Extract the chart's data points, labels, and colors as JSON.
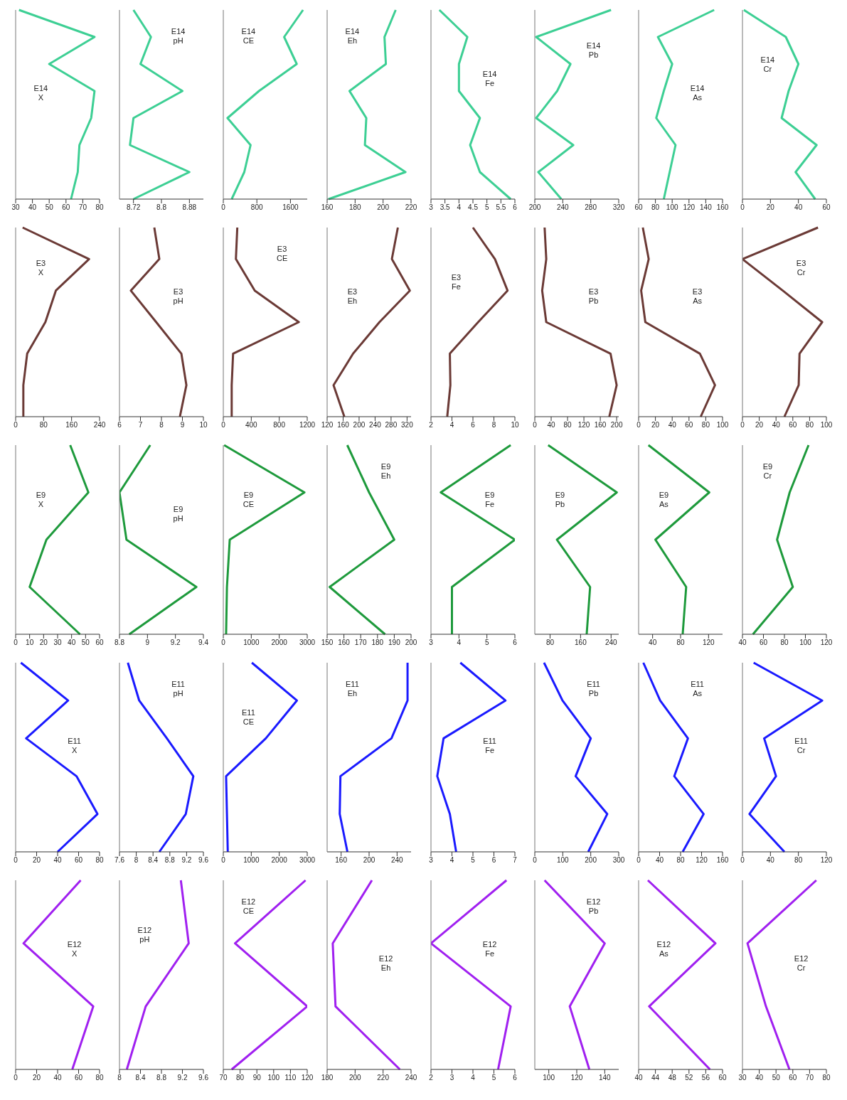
{
  "chart_data": [
    {
      "type": "line",
      "orientation": "horizontal",
      "categories": [
        null,
        null,
        null,
        null,
        null,
        null,
        null,
        null
      ],
      "series": [
        {
          "name": "E14 X",
          "color": "#3dcf94",
          "values": [
            32,
            77,
            50,
            77,
            75,
            68,
            67,
            63
          ]
        }
      ],
      "xlim": [
        30,
        80
      ],
      "xticks": [
        30,
        40,
        50,
        60,
        70,
        80
      ],
      "tick_labels": "x"
    },
    {
      "type": "line",
      "orientation": "horizontal",
      "categories": [
        null,
        null,
        null,
        null,
        null,
        null,
        null,
        null
      ],
      "series": [
        {
          "name": "E14 pH",
          "color": "#3dcf94",
          "values": [
            8.72,
            8.77,
            8.74,
            8.86,
            8.72,
            8.71,
            8.88,
            8.72
          ]
        }
      ],
      "xlim": [
        8.68,
        8.92
      ],
      "xticks": [
        8.72,
        8.8,
        8.88
      ],
      "tick_labels": "x"
    },
    {
      "type": "line",
      "orientation": "horizontal",
      "categories": [
        null,
        null,
        null,
        null,
        null,
        null,
        null,
        null
      ],
      "series": [
        {
          "name": "E14 CE",
          "color": "#3dcf94",
          "values": [
            1900,
            1450,
            1750,
            850,
            100,
            650,
            500,
            200
          ]
        }
      ],
      "xlim": [
        0,
        2000
      ],
      "xticks": [
        0,
        800,
        1600
      ],
      "tick_labels": "x"
    },
    {
      "type": "line",
      "orientation": "horizontal",
      "categories": [
        null,
        null,
        null,
        null,
        null,
        null,
        null,
        null
      ],
      "series": [
        {
          "name": "E14 Eh",
          "color": "#3dcf94",
          "values": [
            209,
            201,
            202,
            176,
            188,
            187,
            216,
            161
          ]
        }
      ],
      "xlim": [
        160,
        220
      ],
      "xticks": [
        160,
        180,
        200,
        220
      ],
      "tick_labels": "x"
    },
    {
      "type": "line",
      "orientation": "horizontal",
      "categories": [
        null,
        null,
        null,
        null,
        null,
        null,
        null,
        null
      ],
      "series": [
        {
          "name": "E14 Fe",
          "color": "#3dcf94",
          "values": [
            3.3,
            4.3,
            4.0,
            4.0,
            4.75,
            4.4,
            4.75,
            5.85
          ]
        }
      ],
      "xlim": [
        3,
        6
      ],
      "xticks": [
        3,
        3.5,
        4,
        4.5,
        5,
        5.5,
        6
      ],
      "tick_labels": "x"
    },
    {
      "type": "line",
      "orientation": "horizontal",
      "categories": [
        null,
        null,
        null,
        null,
        null,
        null,
        null,
        null
      ],
      "series": [
        {
          "name": "E14 Pb",
          "color": "#3dcf94",
          "values": [
            309,
            202,
            251,
            232,
            202,
            255,
            205,
            238
          ]
        }
      ],
      "xlim": [
        200,
        320
      ],
      "xticks": [
        200,
        240,
        280,
        320
      ],
      "tick_labels": "x"
    },
    {
      "type": "line",
      "orientation": "horizontal",
      "categories": [
        null,
        null,
        null,
        null,
        null,
        null,
        null,
        null
      ],
      "series": [
        {
          "name": "E14 As",
          "color": "#3dcf94",
          "values": [
            150,
            83,
            100,
            90,
            81,
            104,
            97,
            90
          ]
        }
      ],
      "xlim": [
        60,
        160
      ],
      "xticks": [
        60,
        80,
        100,
        120,
        140,
        160
      ],
      "tick_labels": "x"
    },
    {
      "type": "line",
      "orientation": "horizontal",
      "categories": [
        null,
        null,
        null,
        null,
        null,
        null,
        null,
        null
      ],
      "series": [
        {
          "name": "E14 Cr",
          "color": "#3dcf94",
          "values": [
            1,
            31,
            40,
            33,
            28,
            53,
            38,
            52
          ]
        }
      ],
      "xlim": [
        0,
        60
      ],
      "xticks": [
        0,
        20,
        40,
        60
      ],
      "tick_labels": "x"
    },
    {
      "type": "line",
      "orientation": "horizontal",
      "categories": [
        null,
        null,
        null,
        null,
        null,
        null,
        null
      ],
      "series": [
        {
          "name": "E3 X",
          "color": "#6b3a36",
          "values": [
            20,
            210,
            115,
            85,
            33,
            22,
            22
          ]
        }
      ],
      "xlim": [
        0,
        240
      ],
      "xticks": [
        0,
        80,
        160,
        240
      ],
      "tick_labels": "x"
    },
    {
      "type": "line",
      "orientation": "horizontal",
      "categories": [
        null,
        null,
        null,
        null,
        null,
        null,
        null
      ],
      "series": [
        {
          "name": "E3 pH",
          "color": "#6b3a36",
          "values": [
            7.66,
            7.9,
            6.54,
            7.75,
            8.95,
            9.19,
            8.88
          ]
        }
      ],
      "xlim": [
        6,
        10
      ],
      "xticks": [
        6,
        7,
        8,
        9,
        10
      ],
      "tick_labels": "x"
    },
    {
      "type": "line",
      "orientation": "horizontal",
      "categories": [
        null,
        null,
        null,
        null,
        null,
        null,
        null
      ],
      "series": [
        {
          "name": "E3 CE",
          "color": "#6b3a36",
          "values": [
            200,
            180,
            450,
            1080,
            140,
            120,
            120
          ]
        }
      ],
      "xlim": [
        0,
        1200
      ],
      "xticks": [
        0,
        400,
        800,
        1200
      ],
      "tick_labels": "x"
    },
    {
      "type": "line",
      "orientation": "horizontal",
      "categories": [
        null,
        null,
        null,
        null,
        null,
        null,
        null
      ],
      "series": [
        {
          "name": "E3 Eh",
          "color": "#6b3a36",
          "values": [
            297,
            282,
            327,
            251,
            185,
            136,
            163
          ]
        }
      ],
      "xlim": [
        120,
        330
      ],
      "xticks": [
        120,
        160,
        200,
        240,
        280,
        320
      ],
      "tick_labels": "x"
    },
    {
      "type": "line",
      "orientation": "horizontal",
      "categories": [
        null,
        null,
        null,
        null,
        null,
        null,
        null
      ],
      "series": [
        {
          "name": "E3 Fe",
          "color": "#6b3a36",
          "values": [
            6.0,
            8.1,
            9.3,
            6.5,
            3.8,
            3.85,
            3.55
          ]
        }
      ],
      "xlim": [
        2,
        10
      ],
      "xticks": [
        2,
        4,
        6,
        8,
        10
      ],
      "tick_labels": "x"
    },
    {
      "type": "line",
      "orientation": "horizontal",
      "categories": [
        null,
        null,
        null,
        null,
        null,
        null,
        null
      ],
      "series": [
        {
          "name": "E3 Pb",
          "color": "#6b3a36",
          "values": [
            24,
            28,
            18,
            28,
            185,
            200,
            182
          ]
        }
      ],
      "xlim": [
        0,
        205
      ],
      "xticks": [
        0,
        40,
        80,
        120,
        160,
        200
      ],
      "tick_labels": "x"
    },
    {
      "type": "line",
      "orientation": "horizontal",
      "categories": [
        null,
        null,
        null,
        null,
        null,
        null,
        null
      ],
      "series": [
        {
          "name": "E3 As",
          "color": "#6b3a36",
          "values": [
            5,
            12,
            3,
            8,
            73,
            91,
            74
          ]
        }
      ],
      "xlim": [
        0,
        100
      ],
      "xticks": [
        0,
        20,
        40,
        60,
        80,
        100
      ],
      "tick_labels": "x"
    },
    {
      "type": "line",
      "orientation": "horizontal",
      "categories": [
        null,
        null,
        null,
        null,
        null,
        null,
        null
      ],
      "series": [
        {
          "name": "E3 Cr",
          "color": "#6b3a36",
          "values": [
            90,
            0,
            48,
            95,
            68,
            67,
            50
          ]
        }
      ],
      "xlim": [
        0,
        100
      ],
      "xticks": [
        0,
        20,
        40,
        60,
        80,
        100
      ],
      "tick_labels": "x"
    },
    {
      "type": "line",
      "orientation": "horizontal",
      "categories": [
        null,
        null,
        null,
        null,
        null
      ],
      "series": [
        {
          "name": "E9 X",
          "color": "#1e9a3c",
          "values": [
            39,
            52,
            22,
            10,
            46
          ]
        }
      ],
      "xlim": [
        0,
        60
      ],
      "xticks": [
        0,
        10,
        20,
        30,
        40,
        50,
        60
      ],
      "tick_labels": "x"
    },
    {
      "type": "line",
      "orientation": "horizontal",
      "categories": [
        null,
        null,
        null,
        null,
        null
      ],
      "series": [
        {
          "name": "E9 pH",
          "color": "#1e9a3c",
          "values": [
            9.02,
            8.8,
            8.85,
            9.35,
            8.87
          ]
        }
      ],
      "xlim": [
        8.8,
        9.4
      ],
      "xticks": [
        8.8,
        9,
        9.2,
        9.4
      ],
      "tick_labels": "x"
    },
    {
      "type": "line",
      "orientation": "horizontal",
      "categories": [
        null,
        null,
        null,
        null,
        null
      ],
      "series": [
        {
          "name": "E9 CE",
          "color": "#1e9a3c",
          "values": [
            30,
            2900,
            230,
            130,
            100
          ]
        }
      ],
      "xlim": [
        0,
        3000
      ],
      "xticks": [
        0,
        1000,
        2000,
        3000
      ],
      "tick_labels": "x"
    },
    {
      "type": "line",
      "orientation": "horizontal",
      "categories": [
        null,
        null,
        null,
        null,
        null
      ],
      "series": [
        {
          "name": "E9 Eh",
          "color": "#1e9a3c",
          "values": [
            162,
            175,
            190,
            151.5,
            184.5
          ]
        }
      ],
      "xlim": [
        150,
        200
      ],
      "xticks": [
        150,
        160,
        170,
        180,
        190,
        200
      ],
      "tick_labels": "x"
    },
    {
      "type": "line",
      "orientation": "horizontal",
      "categories": [
        null,
        null,
        null,
        null,
        null
      ],
      "series": [
        {
          "name": "E9 Fe",
          "color": "#1e9a3c",
          "values": [
            5.85,
            3.35,
            6.0,
            3.75,
            3.75
          ]
        }
      ],
      "xlim": [
        3,
        6
      ],
      "xticks": [
        3,
        4,
        5,
        6
      ],
      "tick_labels": "x"
    },
    {
      "type": "line",
      "orientation": "horizontal",
      "categories": [
        null,
        null,
        null,
        null,
        null
      ],
      "series": [
        {
          "name": "E9 Pb",
          "color": "#1e9a3c",
          "values": [
            75,
            255,
            98,
            185,
            176
          ]
        }
      ],
      "xlim": [
        40,
        260
      ],
      "xticks": [
        80,
        160,
        240
      ],
      "tick_labels": "x"
    },
    {
      "type": "line",
      "orientation": "horizontal",
      "categories": [
        null,
        null,
        null,
        null,
        null
      ],
      "series": [
        {
          "name": "E9 As",
          "color": "#1e9a3c",
          "values": [
            34,
            121,
            44,
            88,
            83
          ]
        }
      ],
      "xlim": [
        20,
        140
      ],
      "xticks": [
        40,
        80,
        120
      ],
      "tick_labels": "x"
    },
    {
      "type": "line",
      "orientation": "horizontal",
      "categories": [
        null,
        null,
        null,
        null,
        null
      ],
      "series": [
        {
          "name": "E9 Cr",
          "color": "#1e9a3c",
          "values": [
            103,
            85,
            73,
            88,
            50
          ]
        }
      ],
      "xlim": [
        40,
        120
      ],
      "xticks": [
        40,
        60,
        80,
        100,
        120
      ],
      "tick_labels": "x"
    },
    {
      "type": "line",
      "orientation": "horizontal",
      "categories": [
        null,
        null,
        null,
        null,
        null,
        null
      ],
      "series": [
        {
          "name": "E11 X",
          "color": "#1a1aff",
          "values": [
            5,
            50,
            10,
            58,
            78,
            40
          ]
        }
      ],
      "xlim": [
        0,
        80
      ],
      "xticks": [
        0,
        20,
        40,
        60,
        80
      ],
      "tick_labels": "x"
    },
    {
      "type": "line",
      "orientation": "horizontal",
      "categories": [
        null,
        null,
        null,
        null,
        null,
        null
      ],
      "series": [
        {
          "name": "E11 pH",
          "color": "#1a1aff",
          "values": [
            7.8,
            8.07,
            8.73,
            9.36,
            9.18,
            8.55
          ]
        }
      ],
      "xlim": [
        7.6,
        9.6
      ],
      "xticks": [
        7.6,
        8,
        8.4,
        8.8,
        9.2,
        9.6
      ],
      "tick_labels": "x"
    },
    {
      "type": "line",
      "orientation": "horizontal",
      "categories": [
        null,
        null,
        null,
        null,
        null,
        null
      ],
      "series": [
        {
          "name": "E11 CE",
          "color": "#1a1aff",
          "values": [
            1020,
            2630,
            1520,
            100,
            130,
            160
          ]
        }
      ],
      "xlim": [
        0,
        3000
      ],
      "xticks": [
        0,
        1000,
        2000,
        3000
      ],
      "tick_labels": "x"
    },
    {
      "type": "line",
      "orientation": "horizontal",
      "categories": [
        null,
        null,
        null,
        null,
        null,
        null
      ],
      "series": [
        {
          "name": "E11 Eh",
          "color": "#1a1aff",
          "values": [
            255,
            255,
            232,
            159,
            158,
            169
          ]
        }
      ],
      "xlim": [
        140,
        260
      ],
      "xticks": [
        160,
        200,
        240
      ],
      "tick_labels": "x"
    },
    {
      "type": "line",
      "orientation": "horizontal",
      "categories": [
        null,
        null,
        null,
        null,
        null,
        null
      ],
      "series": [
        {
          "name": "E11 Fe",
          "color": "#1a1aff",
          "values": [
            4.4,
            6.55,
            3.6,
            3.3,
            3.9,
            4.2
          ]
        }
      ],
      "xlim": [
        3,
        7
      ],
      "xticks": [
        3,
        4,
        5,
        6,
        7
      ],
      "tick_labels": "x"
    },
    {
      "type": "line",
      "orientation": "horizontal",
      "categories": [
        null,
        null,
        null,
        null,
        null,
        null
      ],
      "series": [
        {
          "name": "E11 Pb",
          "color": "#1a1aff",
          "values": [
            33,
            99,
            200,
            146,
            259,
            191
          ]
        }
      ],
      "xlim": [
        0,
        300
      ],
      "xticks": [
        0,
        100,
        200,
        300
      ],
      "tick_labels": "x"
    },
    {
      "type": "line",
      "orientation": "horizontal",
      "categories": [
        null,
        null,
        null,
        null,
        null,
        null
      ],
      "series": [
        {
          "name": "E11 As",
          "color": "#1a1aff",
          "values": [
            9,
            41,
            94,
            68,
            124,
            84
          ]
        }
      ],
      "xlim": [
        0,
        160
      ],
      "xticks": [
        0,
        40,
        80,
        120,
        160
      ],
      "tick_labels": "x"
    },
    {
      "type": "line",
      "orientation": "horizontal",
      "categories": [
        null,
        null,
        null,
        null,
        null,
        null
      ],
      "series": [
        {
          "name": "E11 Cr",
          "color": "#1a1aff",
          "values": [
            16,
            114,
            31,
            48,
            10,
            60
          ]
        }
      ],
      "xlim": [
        0,
        120
      ],
      "xticks": [
        0,
        40,
        80,
        120
      ],
      "tick_labels": "x"
    },
    {
      "type": "line",
      "orientation": "horizontal",
      "categories": [
        null,
        null,
        null,
        null
      ],
      "series": [
        {
          "name": "E12 X",
          "color": "#a020f0",
          "values": [
            62,
            7.5,
            74,
            54
          ]
        }
      ],
      "xlim": [
        0,
        80
      ],
      "xticks": [
        0,
        20,
        40,
        60,
        80
      ],
      "tick_labels": "x"
    },
    {
      "type": "line",
      "orientation": "horizontal",
      "categories": [
        null,
        null,
        null,
        null
      ],
      "series": [
        {
          "name": "E12 pH",
          "color": "#a020f0",
          "values": [
            9.17,
            9.32,
            8.5,
            8.14
          ]
        }
      ],
      "xlim": [
        8,
        9.6
      ],
      "xticks": [
        8,
        8.4,
        8.8,
        9.2,
        9.6
      ],
      "tick_labels": "x"
    },
    {
      "type": "line",
      "orientation": "horizontal",
      "categories": [
        null,
        null,
        null,
        null
      ],
      "series": [
        {
          "name": "E12 CE",
          "color": "#a020f0",
          "values": [
            119,
            77,
            120,
            75
          ]
        }
      ],
      "xlim": [
        70,
        120
      ],
      "xticks": [
        70,
        80,
        90,
        100,
        110,
        120
      ],
      "tick_labels": "x"
    },
    {
      "type": "line",
      "orientation": "horizontal",
      "categories": [
        null,
        null,
        null,
        null
      ],
      "series": [
        {
          "name": "E12 Eh",
          "color": "#a020f0",
          "values": [
            212,
            184,
            186,
            232
          ]
        }
      ],
      "xlim": [
        180,
        240
      ],
      "xticks": [
        180,
        200,
        220,
        240
      ],
      "tick_labels": "x"
    },
    {
      "type": "line",
      "orientation": "horizontal",
      "categories": [
        null,
        null,
        null,
        null
      ],
      "series": [
        {
          "name": "E12 Fe",
          "color": "#a020f0",
          "values": [
            5.6,
            2.0,
            5.8,
            5.2
          ]
        }
      ],
      "xlim": [
        2,
        6
      ],
      "xticks": [
        2,
        3,
        4,
        5,
        6
      ],
      "tick_labels": "x"
    },
    {
      "type": "line",
      "orientation": "horizontal",
      "categories": [
        null,
        null,
        null,
        null
      ],
      "series": [
        {
          "name": "E12 Pb",
          "color": "#a020f0",
          "values": [
            97,
            140,
            115,
            129
          ]
        }
      ],
      "xlim": [
        90,
        150
      ],
      "xticks": [
        100,
        120,
        140
      ],
      "tick_labels": "x"
    },
    {
      "type": "line",
      "orientation": "horizontal",
      "categories": [
        null,
        null,
        null,
        null
      ],
      "series": [
        {
          "name": "E12 As",
          "color": "#a020f0",
          "values": [
            42.2,
            58.3,
            42.5,
            57
          ]
        }
      ],
      "xlim": [
        40,
        60
      ],
      "xticks": [
        40,
        44,
        48,
        52,
        56,
        60
      ],
      "tick_labels": "x"
    },
    {
      "type": "line",
      "orientation": "horizontal",
      "categories": [
        null,
        null,
        null,
        null
      ],
      "series": [
        {
          "name": "E12 Cr",
          "color": "#a020f0",
          "values": [
            74,
            33,
            44,
            58
          ]
        }
      ],
      "xlim": [
        30,
        80
      ],
      "xticks": [
        30,
        40,
        50,
        60,
        70,
        80
      ],
      "tick_labels": "x"
    }
  ]
}
